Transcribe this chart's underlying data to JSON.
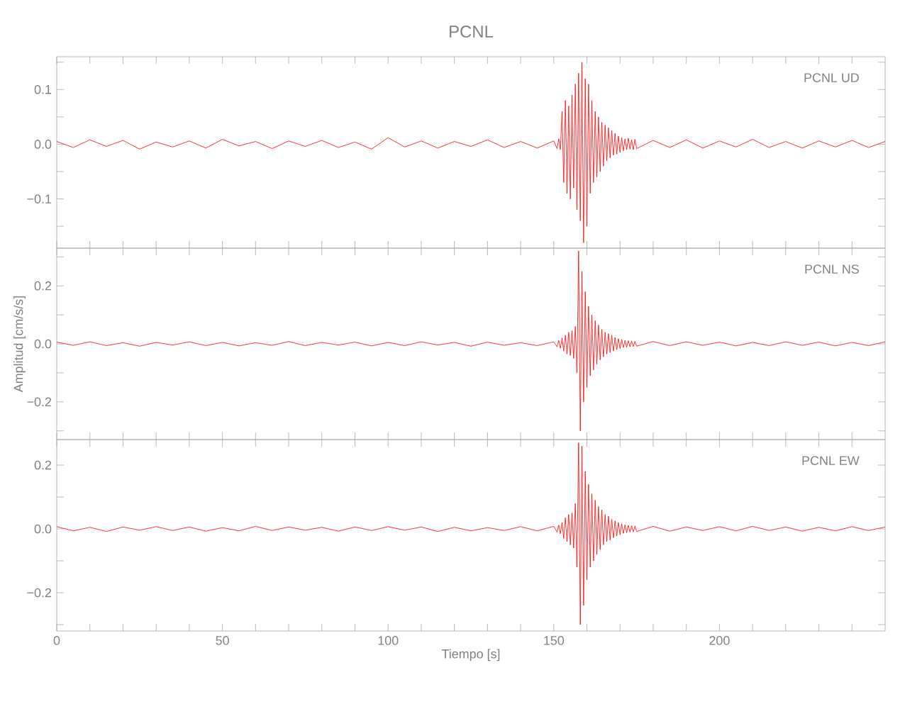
{
  "chart_data": [
    {
      "type": "line",
      "title": "PCNL",
      "tick_labels": "y",
      "annotations": [
        "PCNL   UD"
      ],
      "xlim": [
        0,
        250
      ],
      "xticks": [
        {
          "value": 0,
          "label": null
        },
        {
          "value": 10,
          "label": null
        },
        {
          "value": 20,
          "label": null
        },
        {
          "value": 30,
          "label": null
        },
        {
          "value": 40,
          "label": null
        },
        {
          "value": 50,
          "label": null
        },
        {
          "value": 60,
          "label": null
        },
        {
          "value": 70,
          "label": null
        },
        {
          "value": 80,
          "label": null
        },
        {
          "value": 90,
          "label": null
        },
        {
          "value": 100,
          "label": null
        },
        {
          "value": 110,
          "label": null
        },
        {
          "value": 120,
          "label": null
        },
        {
          "value": 130,
          "label": null
        },
        {
          "value": 140,
          "label": null
        },
        {
          "value": 150,
          "label": null
        },
        {
          "value": 160,
          "label": null
        },
        {
          "value": 170,
          "label": null
        },
        {
          "value": 180,
          "label": null
        },
        {
          "value": 190,
          "label": null
        },
        {
          "value": 200,
          "label": null
        },
        {
          "value": 210,
          "label": null
        },
        {
          "value": 220,
          "label": null
        },
        {
          "value": 230,
          "label": null
        },
        {
          "value": 240,
          "label": null
        }
      ],
      "ylim": [
        -0.19,
        0.16
      ],
      "yticks": [
        {
          "value": -0.15,
          "label": null
        },
        {
          "value": -0.1,
          "label": "−0.1"
        },
        {
          "value": -0.05,
          "label": null
        },
        {
          "value": 0,
          "label": "0.0"
        },
        {
          "value": 0.05,
          "label": null
        },
        {
          "value": 0.1,
          "label": "0.1"
        },
        {
          "value": 0.15,
          "label": null
        }
      ],
      "x": [
        0,
        5,
        10,
        15,
        20,
        25,
        30,
        35,
        40,
        45,
        50,
        55,
        60,
        65,
        70,
        75,
        80,
        85,
        90,
        95,
        100,
        105,
        110,
        115,
        120,
        125,
        130,
        135,
        140,
        145,
        150,
        151,
        151.5,
        152,
        152.5,
        153,
        153.5,
        154,
        154.5,
        155,
        155.5,
        156,
        156.5,
        157,
        157.5,
        158,
        158.5,
        159,
        159.5,
        160,
        160.5,
        161,
        161.5,
        162,
        162.5,
        163,
        163.5,
        164,
        164.5,
        165,
        165.5,
        166,
        166.5,
        167,
        167.5,
        168,
        168.5,
        169,
        169.5,
        170,
        170.5,
        171,
        171.5,
        172,
        172.5,
        173,
        173.5,
        174,
        174.5,
        175,
        180,
        185,
        190,
        195,
        200,
        205,
        210,
        215,
        220,
        225,
        230,
        235,
        240,
        245,
        250
      ],
      "series": [
        {
          "color": "#ff0000",
          "values": [
            0.005,
            -0.006,
            0.008,
            -0.004,
            0.007,
            -0.009,
            0.004,
            -0.005,
            0.006,
            -0.007,
            0.009,
            -0.003,
            0.005,
            -0.008,
            0.006,
            -0.004,
            0.007,
            -0.006,
            0.004,
            -0.009,
            0.012,
            -0.005,
            0.006,
            -0.007,
            0.005,
            -0.004,
            0.008,
            -0.006,
            0.005,
            -0.007,
            0.006,
            -0.008,
            0.01,
            -0.01,
            0.06,
            -0.07,
            0.08,
            -0.09,
            0.07,
            -0.1,
            0.09,
            -0.08,
            0.11,
            -0.12,
            0.13,
            -0.14,
            0.15,
            -0.18,
            0.12,
            -0.15,
            0.11,
            -0.09,
            0.08,
            -0.07,
            0.06,
            -0.06,
            0.05,
            -0.05,
            0.04,
            -0.04,
            0.035,
            -0.03,
            0.03,
            -0.025,
            0.025,
            -0.02,
            0.02,
            -0.018,
            0.015,
            -0.015,
            0.012,
            -0.012,
            0.01,
            -0.01,
            0.011,
            -0.009,
            0.008,
            -0.01,
            0.009,
            -0.008,
            0.007,
            -0.006,
            0.008,
            -0.007,
            0.006,
            -0.005,
            0.009,
            -0.006,
            0.005,
            -0.007,
            0.006,
            -0.005,
            0.007,
            -0.006,
            0.005
          ]
        }
      ]
    },
    {
      "type": "line",
      "ylabel": "Amplitud [cm/s/s]",
      "tick_labels": "y",
      "annotations": [
        "PCNL   NS"
      ],
      "xlim": [
        0,
        250
      ],
      "xticks": [
        {
          "value": 0,
          "label": null
        },
        {
          "value": 10,
          "label": null
        },
        {
          "value": 20,
          "label": null
        },
        {
          "value": 30,
          "label": null
        },
        {
          "value": 40,
          "label": null
        },
        {
          "value": 50,
          "label": null
        },
        {
          "value": 60,
          "label": null
        },
        {
          "value": 70,
          "label": null
        },
        {
          "value": 80,
          "label": null
        },
        {
          "value": 90,
          "label": null
        },
        {
          "value": 100,
          "label": null
        },
        {
          "value": 110,
          "label": null
        },
        {
          "value": 120,
          "label": null
        },
        {
          "value": 130,
          "label": null
        },
        {
          "value": 140,
          "label": null
        },
        {
          "value": 150,
          "label": null
        },
        {
          "value": 160,
          "label": null
        },
        {
          "value": 170,
          "label": null
        },
        {
          "value": 180,
          "label": null
        },
        {
          "value": 190,
          "label": null
        },
        {
          "value": 200,
          "label": null
        },
        {
          "value": 210,
          "label": null
        },
        {
          "value": 220,
          "label": null
        },
        {
          "value": 230,
          "label": null
        },
        {
          "value": 240,
          "label": null
        }
      ],
      "ylim": [
        -0.33,
        0.33
      ],
      "yticks": [
        {
          "value": -0.3,
          "label": null
        },
        {
          "value": -0.2,
          "label": "−0.2"
        },
        {
          "value": -0.1,
          "label": null
        },
        {
          "value": 0,
          "label": "0.0"
        },
        {
          "value": 0.1,
          "label": null
        },
        {
          "value": 0.2,
          "label": "0.2"
        },
        {
          "value": 0.3,
          "label": null
        }
      ],
      "x": [
        0,
        5,
        10,
        15,
        20,
        25,
        30,
        35,
        40,
        45,
        50,
        55,
        60,
        65,
        70,
        75,
        80,
        85,
        90,
        95,
        100,
        105,
        110,
        115,
        120,
        125,
        130,
        135,
        140,
        145,
        150,
        151,
        151.5,
        152,
        152.5,
        153,
        153.5,
        154,
        154.5,
        155,
        155.5,
        156,
        156.5,
        157,
        157.5,
        158,
        158.5,
        159,
        159.5,
        160,
        160.5,
        161,
        161.5,
        162,
        162.5,
        163,
        163.5,
        164,
        164.5,
        165,
        165.5,
        166,
        166.5,
        167,
        167.5,
        168,
        168.5,
        169,
        169.5,
        170,
        170.5,
        171,
        171.5,
        172,
        172.5,
        173,
        173.5,
        174,
        174.5,
        175,
        180,
        185,
        190,
        195,
        200,
        205,
        210,
        215,
        220,
        225,
        230,
        235,
        240,
        245,
        250
      ],
      "series": [
        {
          "color": "#ff0000",
          "values": [
            0.006,
            -0.005,
            0.007,
            -0.006,
            0.004,
            -0.008,
            0.005,
            -0.004,
            0.007,
            -0.006,
            0.005,
            -0.007,
            0.004,
            -0.005,
            0.008,
            -0.006,
            0.005,
            -0.004,
            0.006,
            -0.007,
            0.005,
            -0.006,
            0.007,
            -0.004,
            0.005,
            -0.008,
            0.006,
            -0.005,
            0.004,
            -0.006,
            0.007,
            -0.01,
            0.012,
            -0.015,
            0.02,
            -0.025,
            0.03,
            -0.035,
            0.04,
            -0.04,
            0.045,
            -0.05,
            0.06,
            -0.1,
            0.32,
            -0.3,
            0.25,
            -0.2,
            0.18,
            -0.15,
            0.13,
            -0.11,
            0.1,
            -0.09,
            0.08,
            -0.07,
            0.065,
            -0.055,
            0.05,
            -0.045,
            0.04,
            -0.035,
            0.035,
            -0.03,
            0.03,
            -0.025,
            0.022,
            -0.02,
            0.018,
            -0.016,
            0.015,
            -0.013,
            0.012,
            -0.012,
            0.011,
            -0.01,
            0.01,
            -0.009,
            0.009,
            -0.008,
            0.008,
            -0.006,
            0.007,
            -0.005,
            0.006,
            -0.007,
            0.005,
            -0.006,
            0.007,
            -0.005,
            0.006,
            -0.007,
            0.005,
            -0.006,
            0.007
          ]
        }
      ]
    },
    {
      "type": "line",
      "xlabel": "Tiempo [s]",
      "annotations": [
        "PCNL   EW"
      ],
      "xlim": [
        0,
        250
      ],
      "xticks": [
        0,
        {
          "value": 10,
          "label": null
        },
        {
          "value": 20,
          "label": null
        },
        {
          "value": 30,
          "label": null
        },
        {
          "value": 40,
          "label": null
        },
        50,
        {
          "value": 60,
          "label": null
        },
        {
          "value": 70,
          "label": null
        },
        {
          "value": 80,
          "label": null
        },
        {
          "value": 90,
          "label": null
        },
        100,
        {
          "value": 110,
          "label": null
        },
        {
          "value": 120,
          "label": null
        },
        {
          "value": 130,
          "label": null
        },
        {
          "value": 140,
          "label": null
        },
        150,
        {
          "value": 160,
          "label": null
        },
        {
          "value": 170,
          "label": null
        },
        {
          "value": 180,
          "label": null
        },
        {
          "value": 190,
          "label": null
        },
        200,
        {
          "value": 210,
          "label": null
        },
        {
          "value": 220,
          "label": null
        },
        {
          "value": 230,
          "label": null
        },
        {
          "value": 240,
          "label": null
        }
      ],
      "ylim": [
        -0.32,
        0.28
      ],
      "yticks": [
        {
          "value": -0.3,
          "label": null
        },
        {
          "value": -0.2,
          "label": "−0.2"
        },
        {
          "value": -0.1,
          "label": null
        },
        {
          "value": 0,
          "label": "0.0"
        },
        {
          "value": 0.1,
          "label": null
        },
        {
          "value": 0.2,
          "label": "0.2"
        }
      ],
      "x": [
        0,
        5,
        10,
        15,
        20,
        25,
        30,
        35,
        40,
        45,
        50,
        55,
        60,
        65,
        70,
        75,
        80,
        85,
        90,
        95,
        100,
        105,
        110,
        115,
        120,
        125,
        130,
        135,
        140,
        145,
        150,
        151,
        151.5,
        152,
        152.5,
        153,
        153.5,
        154,
        154.5,
        155,
        155.5,
        156,
        156.5,
        157,
        157.5,
        158,
        158.5,
        159,
        159.5,
        160,
        160.5,
        161,
        161.5,
        162,
        162.5,
        163,
        163.5,
        164,
        164.5,
        165,
        165.5,
        166,
        166.5,
        167,
        167.5,
        168,
        168.5,
        169,
        169.5,
        170,
        170.5,
        171,
        171.5,
        172,
        172.5,
        173,
        173.5,
        174,
        174.5,
        175,
        180,
        185,
        190,
        195,
        200,
        205,
        210,
        215,
        220,
        225,
        230,
        235,
        240,
        245,
        250
      ],
      "series": [
        {
          "color": "#ff0000",
          "values": [
            0.007,
            -0.006,
            0.005,
            -0.008,
            0.006,
            -0.004,
            0.007,
            -0.005,
            0.006,
            -0.007,
            0.004,
            -0.006,
            0.008,
            -0.005,
            0.006,
            -0.004,
            0.005,
            -0.007,
            0.006,
            -0.005,
            0.007,
            -0.004,
            0.006,
            -0.008,
            0.005,
            -0.006,
            0.004,
            -0.005,
            0.007,
            -0.006,
            0.008,
            -0.01,
            0.012,
            -0.015,
            0.02,
            -0.03,
            0.035,
            -0.04,
            0.045,
            -0.05,
            0.05,
            -0.06,
            0.08,
            -0.12,
            0.27,
            -0.3,
            0.26,
            -0.24,
            0.18,
            -0.16,
            0.14,
            -0.12,
            0.11,
            -0.1,
            0.09,
            -0.08,
            0.07,
            -0.065,
            0.06,
            -0.05,
            0.045,
            -0.04,
            0.04,
            -0.035,
            0.03,
            -0.028,
            0.025,
            -0.022,
            0.02,
            -0.018,
            0.016,
            -0.014,
            0.013,
            -0.012,
            0.011,
            -0.01,
            0.01,
            -0.009,
            0.009,
            -0.008,
            0.008,
            -0.007,
            0.006,
            -0.005,
            0.007,
            -0.006,
            0.008,
            -0.005,
            0.006,
            -0.007,
            0.005,
            -0.006,
            0.007,
            -0.005,
            0.006
          ]
        }
      ]
    }
  ]
}
